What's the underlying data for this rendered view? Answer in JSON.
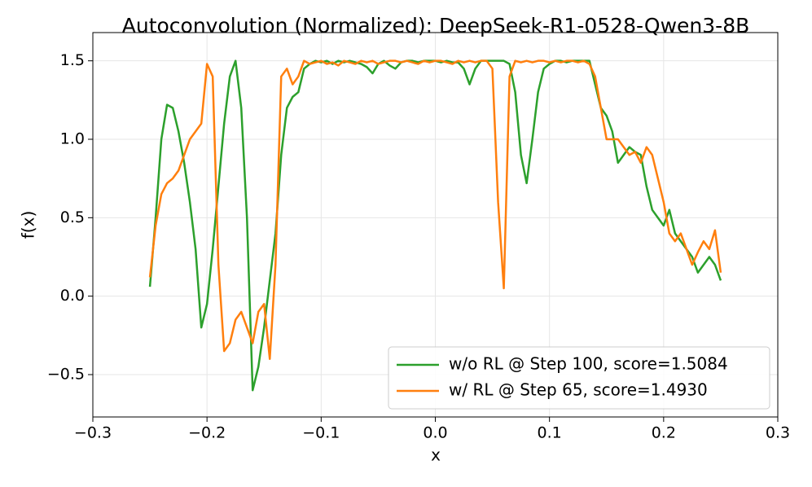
{
  "chart_data": {
    "type": "line",
    "title": "Autoconvolution (Normalized): DeepSeek-R1-0528-Qwen3-8B",
    "x_label": "x",
    "y_label": "f(x)",
    "x": [
      -0.25,
      -0.245,
      -0.24,
      -0.235,
      -0.23,
      -0.225,
      -0.22,
      -0.215,
      -0.21,
      -0.205,
      -0.2,
      -0.195,
      -0.19,
      -0.185,
      -0.18,
      -0.175,
      -0.17,
      -0.165,
      -0.16,
      -0.155,
      -0.15,
      -0.145,
      -0.14,
      -0.135,
      -0.13,
      -0.125,
      -0.12,
      -0.115,
      -0.11,
      -0.105,
      -0.1,
      -0.095,
      -0.09,
      -0.085,
      -0.08,
      -0.075,
      -0.07,
      -0.065,
      -0.06,
      -0.055,
      -0.05,
      -0.045,
      -0.04,
      -0.035,
      -0.03,
      -0.025,
      -0.02,
      -0.015,
      -0.01,
      -0.005,
      0,
      0.005,
      0.01,
      0.015,
      0.02,
      0.025,
      0.03,
      0.035,
      0.04,
      0.045,
      0.05,
      0.055,
      0.06,
      0.065,
      0.07,
      0.075,
      0.08,
      0.085,
      0.09,
      0.095,
      0.1,
      0.105,
      0.11,
      0.115,
      0.12,
      0.125,
      0.13,
      0.135,
      0.14,
      0.145,
      0.15,
      0.155,
      0.16,
      0.165,
      0.17,
      0.175,
      0.18,
      0.185,
      0.19,
      0.195,
      0.2,
      0.205,
      0.21,
      0.215,
      0.22,
      0.225,
      0.23,
      0.235,
      0.24,
      0.245,
      0.25
    ],
    "series": [
      {
        "name": "w/o RL @ Step 100, score=1.5084",
        "color": "#2ca02c",
        "values": [
          0.06,
          0.5,
          1.0,
          1.22,
          1.2,
          1.05,
          0.85,
          0.6,
          0.3,
          -0.2,
          -0.05,
          0.3,
          0.7,
          1.1,
          1.4,
          1.5,
          1.2,
          0.5,
          -0.6,
          -0.45,
          -0.2,
          0.1,
          0.4,
          0.9,
          1.2,
          1.27,
          1.3,
          1.45,
          1.48,
          1.5,
          1.49,
          1.5,
          1.48,
          1.5,
          1.49,
          1.5,
          1.49,
          1.48,
          1.46,
          1.42,
          1.48,
          1.5,
          1.47,
          1.45,
          1.49,
          1.5,
          1.5,
          1.49,
          1.5,
          1.5,
          1.5,
          1.49,
          1.5,
          1.49,
          1.49,
          1.45,
          1.35,
          1.45,
          1.5,
          1.5,
          1.5,
          1.5,
          1.5,
          1.48,
          1.3,
          0.9,
          0.72,
          1.0,
          1.3,
          1.45,
          1.48,
          1.5,
          1.5,
          1.49,
          1.5,
          1.5,
          1.5,
          1.5,
          1.35,
          1.2,
          1.15,
          1.05,
          0.85,
          0.9,
          0.95,
          0.92,
          0.9,
          0.7,
          0.55,
          0.5,
          0.45,
          0.55,
          0.4,
          0.35,
          0.3,
          0.25,
          0.15,
          0.2,
          0.25,
          0.2,
          0.1
        ]
      },
      {
        "name": "w/ RL @ Step 65, score=1.4930",
        "color": "#ff7f0e",
        "values": [
          0.12,
          0.45,
          0.65,
          0.72,
          0.75,
          0.8,
          0.9,
          1.0,
          1.05,
          1.1,
          1.48,
          1.4,
          0.2,
          -0.35,
          -0.3,
          -0.15,
          -0.1,
          -0.2,
          -0.3,
          -0.1,
          -0.05,
          -0.4,
          0.2,
          1.4,
          1.45,
          1.35,
          1.4,
          1.5,
          1.48,
          1.49,
          1.5,
          1.48,
          1.49,
          1.47,
          1.5,
          1.49,
          1.48,
          1.5,
          1.49,
          1.5,
          1.48,
          1.49,
          1.5,
          1.5,
          1.49,
          1.5,
          1.49,
          1.48,
          1.5,
          1.49,
          1.5,
          1.5,
          1.49,
          1.48,
          1.5,
          1.49,
          1.5,
          1.49,
          1.5,
          1.5,
          1.45,
          0.6,
          0.05,
          1.4,
          1.5,
          1.49,
          1.5,
          1.49,
          1.5,
          1.5,
          1.49,
          1.5,
          1.49,
          1.5,
          1.5,
          1.49,
          1.5,
          1.48,
          1.4,
          1.2,
          1.0,
          1.0,
          1.0,
          0.95,
          0.9,
          0.92,
          0.85,
          0.95,
          0.9,
          0.75,
          0.6,
          0.4,
          0.35,
          0.4,
          0.3,
          0.2,
          0.28,
          0.35,
          0.3,
          0.42,
          0.15
        ]
      }
    ],
    "xlim": [
      -0.3,
      0.3
    ],
    "xticks": [
      {
        "value": -0.3,
        "label": "−0.3"
      },
      {
        "value": -0.2,
        "label": "−0.2"
      },
      {
        "value": -0.1,
        "label": "−0.1"
      },
      {
        "value": 0,
        "label": "0.0"
      },
      0.1,
      0.2,
      0.3
    ],
    "ylim": [
      -0.77,
      1.68
    ],
    "yticks": [
      {
        "value": -0.5,
        "label": "−0.5"
      },
      {
        "value": 0,
        "label": "0.0"
      },
      0.5,
      {
        "value": 1,
        "label": "1.0"
      },
      1.5
    ],
    "grid": true,
    "legend": "lower right"
  }
}
